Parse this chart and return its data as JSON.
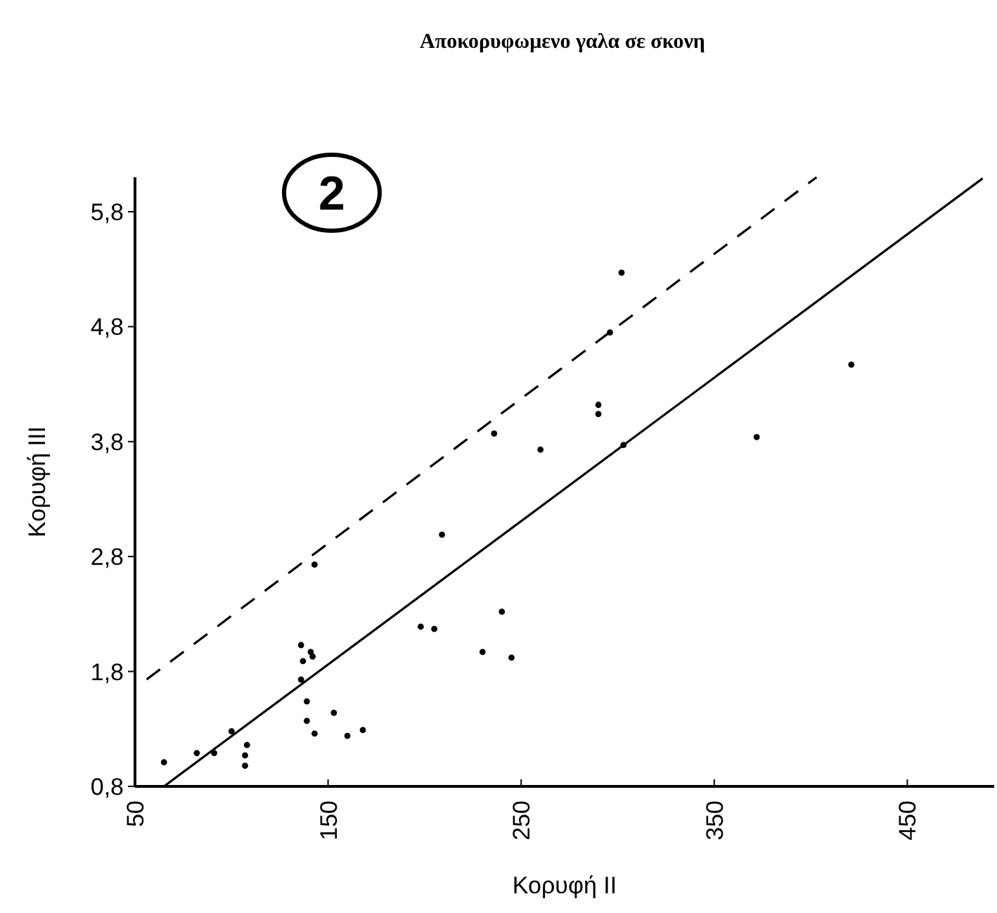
{
  "chart_data": {
    "type": "scatter",
    "title": "Αποκορυφωμενο γαλα σε σκονη",
    "xlabel": "Κορυφή II",
    "ylabel": "Κορυφή III",
    "annotations": [
      "2"
    ],
    "xlim": [
      50,
      495
    ],
    "xticks": [
      50,
      150,
      250,
      350,
      450
    ],
    "ylim": [
      0.8,
      6.1
    ],
    "yticks": [
      {
        "value": 0.8,
        "label": "0,8"
      },
      {
        "value": 1.8,
        "label": "1,8"
      },
      {
        "value": 2.8,
        "label": "2,8"
      },
      {
        "value": 3.8,
        "label": "3,8"
      },
      {
        "value": 4.8,
        "label": "4,8"
      },
      {
        "value": 5.8,
        "label": "5,8"
      }
    ],
    "grid": false,
    "marker": "circle",
    "series": [
      {
        "color": "#000000",
        "x": [
          65,
          82,
          91,
          100,
          108,
          107,
          107,
          136,
          137,
          141,
          142,
          136,
          139,
          139,
          143,
          143,
          153,
          160,
          168,
          198,
          205,
          209,
          230,
          240,
          245,
          236,
          260,
          290,
          290,
          302,
          296,
          372,
          421,
          303
        ],
        "values": [
          1.01,
          1.09,
          1.09,
          1.28,
          1.16,
          1.07,
          0.98,
          2.03,
          1.89,
          1.97,
          1.93,
          1.73,
          1.54,
          1.37,
          1.26,
          2.73,
          1.44,
          1.24,
          1.29,
          2.19,
          2.17,
          2.99,
          1.97,
          2.32,
          1.92,
          3.87,
          3.73,
          4.12,
          4.04,
          5.27,
          4.75,
          3.84,
          4.47,
          3.77
        ]
      },
      {
        "type": "line",
        "color": "#000000",
        "line_style": "solid",
        "marker": "none",
        "x": [
          65,
          489
        ],
        "values": [
          0.8,
          6.09
        ]
      },
      {
        "type": "line",
        "color": "#000000",
        "line_style": "dashed",
        "marker": "none",
        "x": [
          56,
          403
        ],
        "values": [
          1.73,
          6.1
        ]
      }
    ]
  }
}
